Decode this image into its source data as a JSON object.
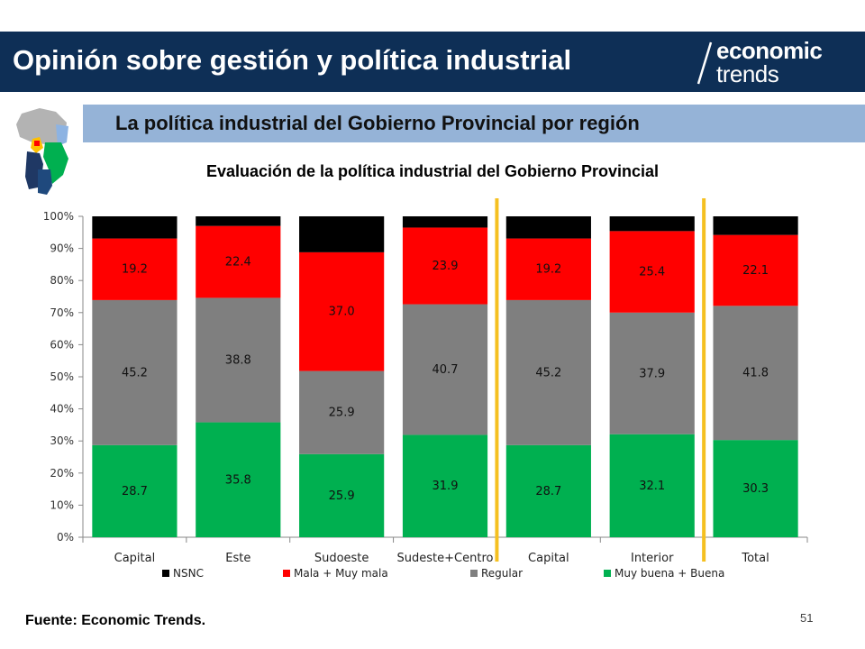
{
  "header": {
    "title": "Opinión sobre gestión y política industrial"
  },
  "logo": {
    "line1": "economic",
    "line2": "trends"
  },
  "subheader": {
    "title": "La política industrial del Gobierno Provincial por región"
  },
  "footer": {
    "source": "Fuente: Economic Trends.",
    "page_number": "51"
  },
  "colors": {
    "header_bg": "#0e2f56",
    "subbar_bg": "#95b3d7",
    "separator": "#f5c021"
  },
  "chart_data": {
    "type": "bar",
    "stacked": true,
    "percent_stacked": true,
    "title": "Evaluación de la política industrial del Gobierno Provincial",
    "categories": [
      "Capital",
      "Este",
      "Sudoeste",
      "Sudeste+Centro",
      "Capital",
      "Interior",
      "Total"
    ],
    "ylim": [
      0,
      100
    ],
    "yticks": [
      "0%",
      "10%",
      "20%",
      "30%",
      "40%",
      "50%",
      "60%",
      "70%",
      "80%",
      "90%",
      "100%"
    ],
    "series": [
      {
        "name": "Muy buena + Buena",
        "color": "#00b050",
        "values": [
          28.7,
          35.8,
          25.9,
          31.9,
          28.7,
          32.1,
          30.3
        ]
      },
      {
        "name": "Regular",
        "color": "#7f7f7f",
        "values": [
          45.2,
          38.8,
          25.9,
          40.7,
          45.2,
          37.9,
          41.8
        ]
      },
      {
        "name": "Mala + Muy mala",
        "color": "#ff0000",
        "values": [
          19.2,
          22.4,
          37.0,
          23.9,
          19.2,
          25.4,
          22.1
        ]
      },
      {
        "name": "NSNC",
        "color": "#000000",
        "values": [
          6.9,
          3.0,
          11.2,
          3.5,
          6.9,
          4.6,
          5.8
        ]
      }
    ],
    "labels": [
      [
        "28.7",
        "35.8",
        "25.9",
        "31.9",
        "28.7",
        "32.1",
        "30.3"
      ],
      [
        "45.2",
        "38.8",
        "25.9",
        "40.7",
        "45.2",
        "37.9",
        "41.8"
      ],
      [
        "19.2",
        "22.4",
        "37.0",
        "23.9",
        "19.2",
        "25.4",
        "22.1"
      ],
      [
        "",
        "",
        "",
        "",
        "",
        "",
        ""
      ]
    ],
    "legend_order": [
      "NSNC",
      "Mala + Muy mala",
      "Regular",
      "Muy buena + Buena"
    ],
    "legend_position": "bottom",
    "separators_after_category": [
      4,
      6
    ],
    "grid": false
  }
}
